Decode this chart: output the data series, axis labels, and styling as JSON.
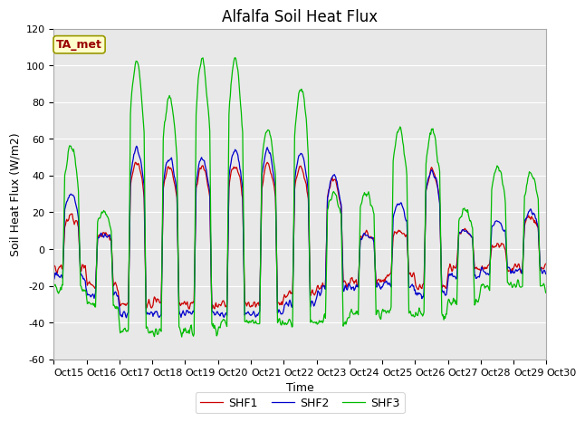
{
  "title": "Alfalfa Soil Heat Flux",
  "ylabel": "Soil Heat Flux (W/m2)",
  "xlabel": "Time",
  "ylim": [
    -60,
    120
  ],
  "yticks": [
    -60,
    -40,
    -20,
    0,
    20,
    40,
    60,
    80,
    100,
    120
  ],
  "xlim": [
    0,
    360
  ],
  "x_tick_labels": [
    "Oct 15",
    "Oct 16",
    "Oct 17",
    "Oct 18",
    "Oct 19",
    "Oct 20",
    "Oct 21",
    "Oct 22",
    "Oct 23",
    "Oct 24",
    "Oct 25",
    "Oct 26",
    "Oct 27",
    "Oct 28",
    "Oct 29",
    "Oct 30"
  ],
  "x_tick_positions": [
    0,
    24,
    48,
    72,
    96,
    120,
    144,
    168,
    192,
    216,
    240,
    264,
    288,
    312,
    336,
    360
  ],
  "shf1_color": "#cc0000",
  "shf2_color": "#0000cc",
  "shf3_color": "#00bb00",
  "linewidth": 0.9,
  "fig_bg_color": "#ffffff",
  "plot_bg_color": "#e8e8e8",
  "grid_color": "#ffffff",
  "ta_met_text": "TA_met",
  "ta_met_text_color": "#990000",
  "ta_met_bg": "#ffffcc",
  "ta_met_border": "#999900",
  "title_fontsize": 12,
  "axis_label_fontsize": 9,
  "tick_fontsize": 8
}
